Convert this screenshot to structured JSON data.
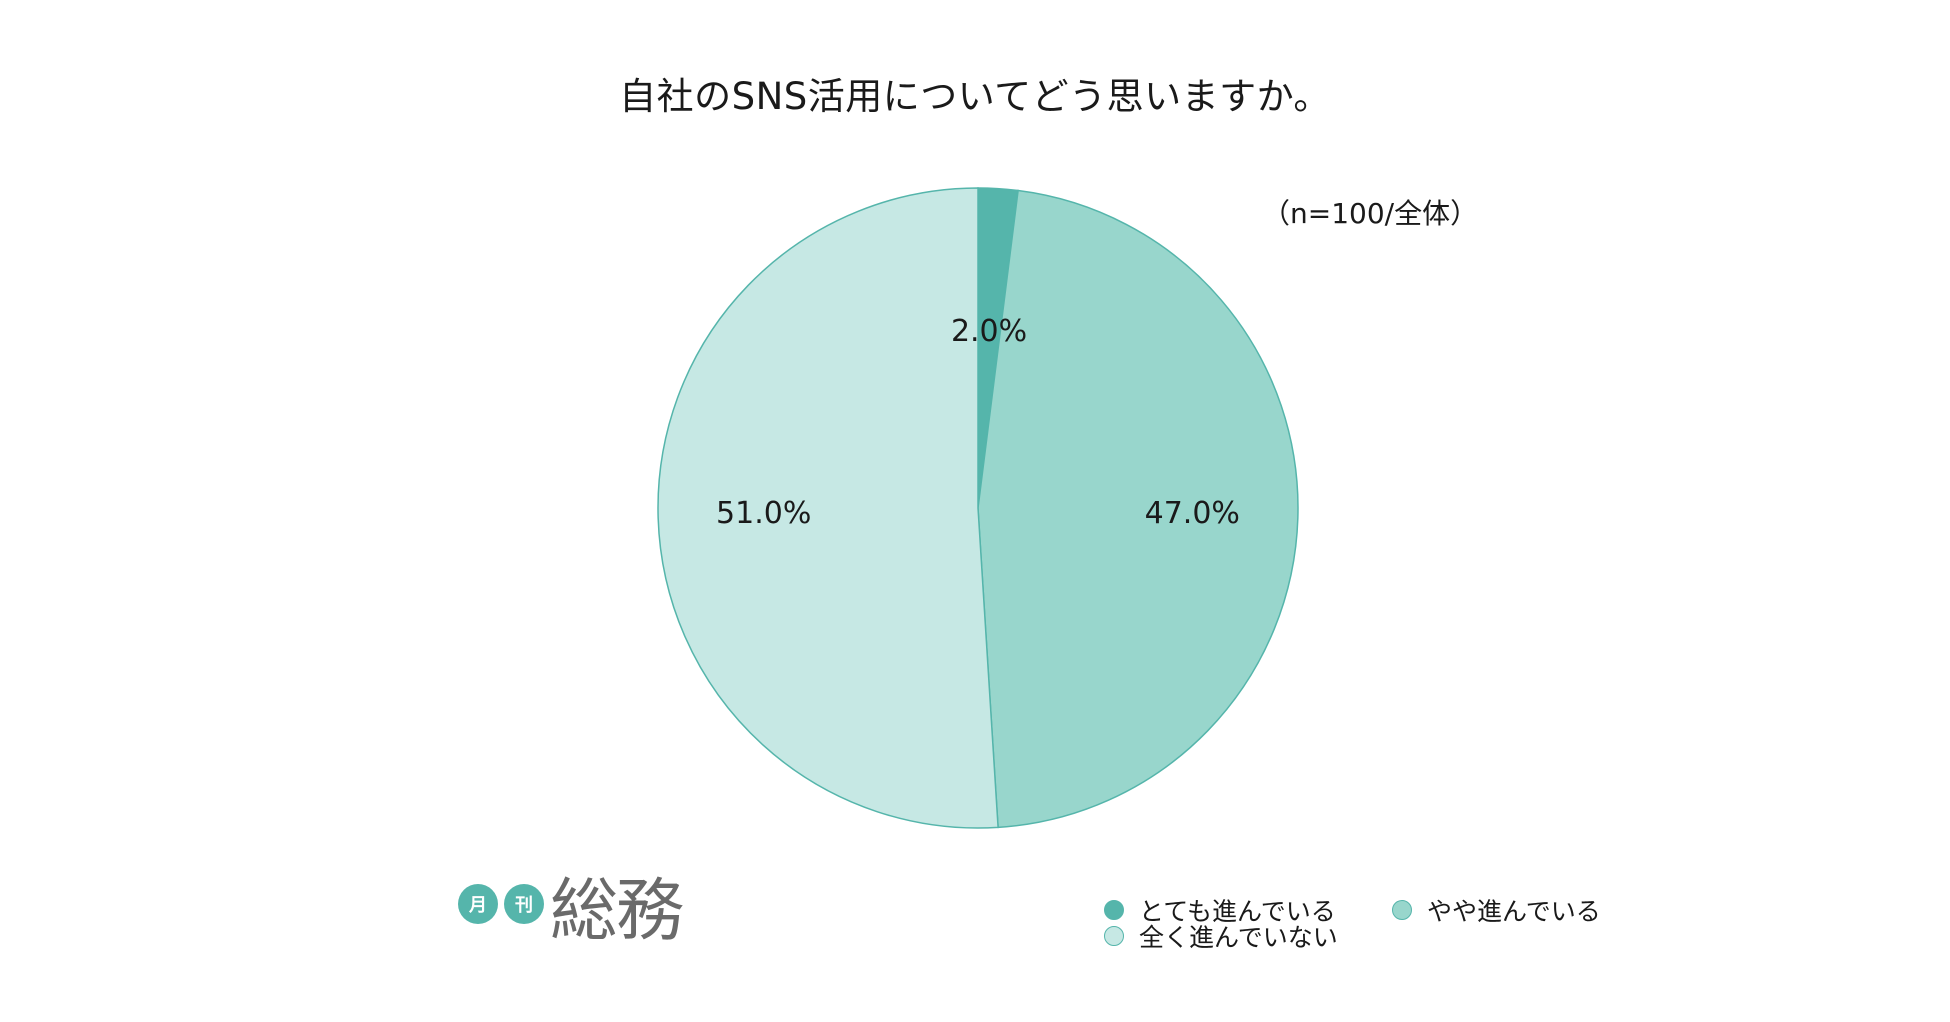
{
  "title": "自社のSNS活用についてどう思いますか。",
  "sample_note": "（n=100/全体）",
  "logo": {
    "badge1": "月",
    "badge2": "刊",
    "main": "総務"
  },
  "colors": {
    "very_advanced": "#55b5ab",
    "somewhat_advanced": "#98d6cc",
    "not_advanced": "#c6e8e4",
    "outline": "#55b5ab"
  },
  "chart_data": {
    "type": "pie",
    "title": "自社のSNS活用についてどう思いますか。",
    "slices": [
      {
        "label": "とても進んでいる",
        "value": 2.0,
        "display": "2.0%",
        "color": "#55b5ab"
      },
      {
        "label": "やや進んでいる",
        "value": 47.0,
        "display": "47.0%",
        "color": "#98d6cc"
      },
      {
        "label": "全く進んでいない",
        "value": 51.0,
        "display": "51.0%",
        "color": "#c6e8e4"
      }
    ],
    "start_angle": "12 o'clock",
    "direction": "clockwise",
    "legend_placement": "bottom-right"
  }
}
